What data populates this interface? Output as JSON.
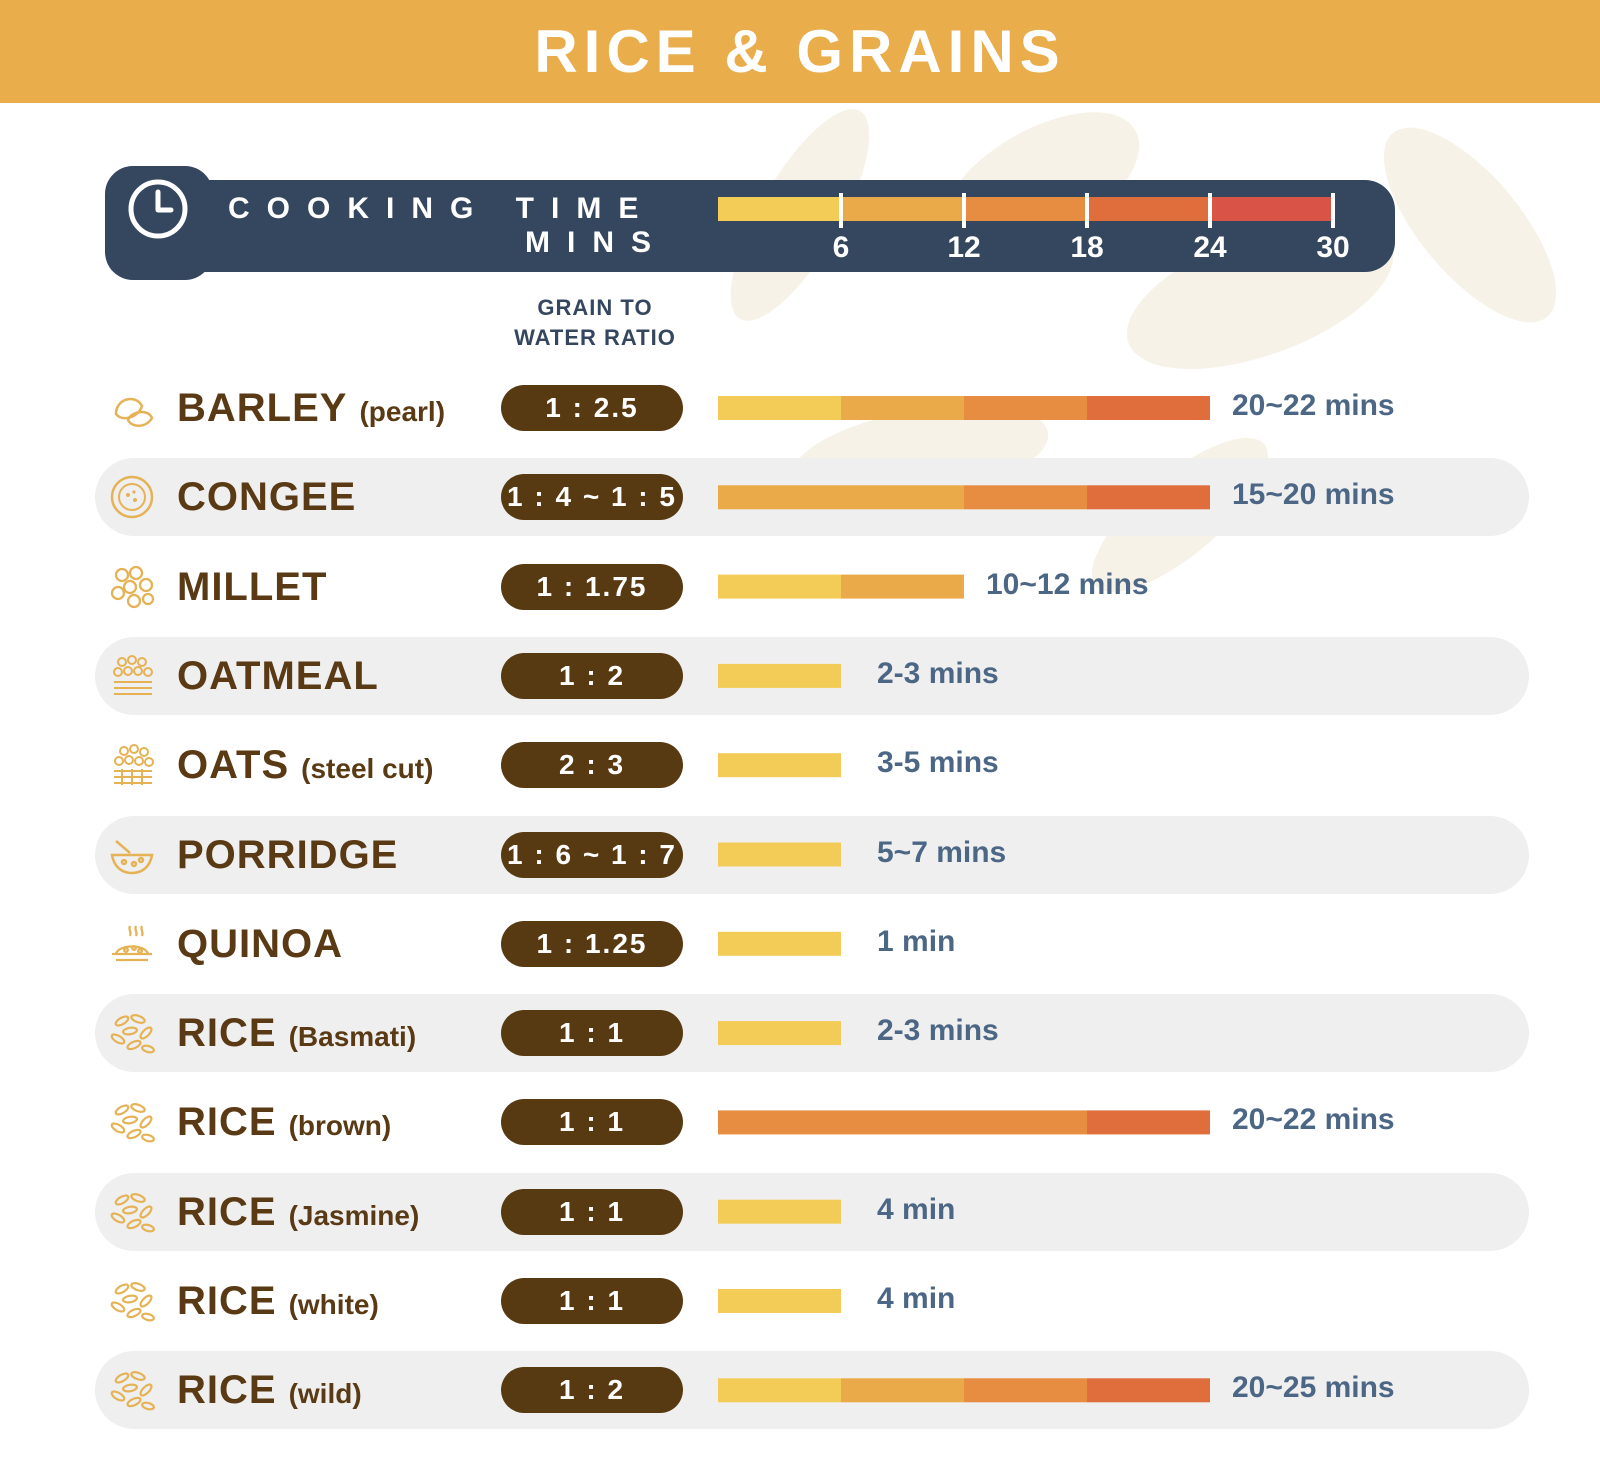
{
  "title": "RICE & GRAINS",
  "timebar": {
    "label": "COOKING TIME",
    "unit": "MINS",
    "ticks": [
      "6",
      "12",
      "18",
      "24",
      "30"
    ]
  },
  "ratio_header": [
    "GRAIN TO",
    "WATER RATIO"
  ],
  "colors": {
    "header": "#E9AD4B",
    "timebar_bg": "#35475F",
    "pill": "#573A12",
    "name_text": "#5A3A14",
    "duration_text": "#4C6685",
    "segments": [
      "#F2CC57",
      "#EAAA49",
      "#E78D41",
      "#E06E3C",
      "#D95446"
    ]
  },
  "chart_data": {
    "type": "bar",
    "title": "RICE & GRAINS",
    "xlabel": "COOKING TIME MINS",
    "xlim": [
      0,
      30
    ],
    "xticks": [
      6,
      12,
      18,
      24,
      30
    ],
    "note_ratio_column": "GRAIN TO WATER RATIO",
    "rows": [
      {
        "name": "BARLEY",
        "qualifier": "(pearl)",
        "icon": "barley-icon",
        "ratio": "1 : 2.5",
        "duration": "20~22 mins",
        "bar_start": 0,
        "bar_end": 24,
        "shaded": false
      },
      {
        "name": "CONGEE",
        "qualifier": "",
        "icon": "congee-bowl-icon",
        "ratio": "1 : 4 ~ 1 : 5",
        "duration": "15~20 mins",
        "bar_start": 0,
        "bar_end": 24,
        "shaded": true
      },
      {
        "name": "MILLET",
        "qualifier": "",
        "icon": "millet-icon",
        "ratio": "1 : 1.75",
        "duration": "10~12 mins",
        "bar_start": 0,
        "bar_end": 12,
        "shaded": false
      },
      {
        "name": "OATMEAL",
        "qualifier": "",
        "icon": "oatmeal-icon",
        "ratio": "1 : 2",
        "duration": "2-3 mins",
        "bar_start": 0,
        "bar_end": 6,
        "shaded": true
      },
      {
        "name": "OATS",
        "qualifier": "(steel cut)",
        "icon": "oats-icon",
        "ratio": "2 : 3",
        "duration": "3-5 mins",
        "bar_start": 0,
        "bar_end": 6,
        "shaded": false
      },
      {
        "name": "PORRIDGE",
        "qualifier": "",
        "icon": "porridge-bowl-icon",
        "ratio": "1 : 6 ~ 1 : 7",
        "duration": "5~7 mins",
        "bar_start": 0,
        "bar_end": 6,
        "shaded": true
      },
      {
        "name": "QUINOA",
        "qualifier": "",
        "icon": "quinoa-plate-icon",
        "ratio": "1 : 1.25",
        "duration": "1 min",
        "bar_start": 0,
        "bar_end": 6,
        "shaded": false
      },
      {
        "name": "RICE",
        "qualifier": "(Basmati)",
        "icon": "rice-icon",
        "ratio": "1 : 1",
        "duration": "2-3 mins",
        "bar_start": 0,
        "bar_end": 6,
        "shaded": true
      },
      {
        "name": "RICE",
        "qualifier": "(brown)",
        "icon": "rice-icon",
        "ratio": "1 : 1",
        "duration": "20~22 mins",
        "bar_start": 0,
        "bar_end": 24,
        "shaded": false
      },
      {
        "name": "RICE",
        "qualifier": "(Jasmine)",
        "icon": "rice-icon",
        "ratio": "1 : 1",
        "duration": "4 min",
        "bar_start": 0,
        "bar_end": 6,
        "shaded": true
      },
      {
        "name": "RICE",
        "qualifier": "(white)",
        "icon": "rice-icon",
        "ratio": "1 : 1",
        "duration": "4 min",
        "bar_start": 0,
        "bar_end": 6,
        "shaded": false
      },
      {
        "name": "RICE",
        "qualifier": "(wild)",
        "icon": "rice-icon",
        "ratio": "1 : 2",
        "duration": "20~25 mins",
        "bar_start": 0,
        "bar_end": 24,
        "shaded": true
      }
    ]
  }
}
